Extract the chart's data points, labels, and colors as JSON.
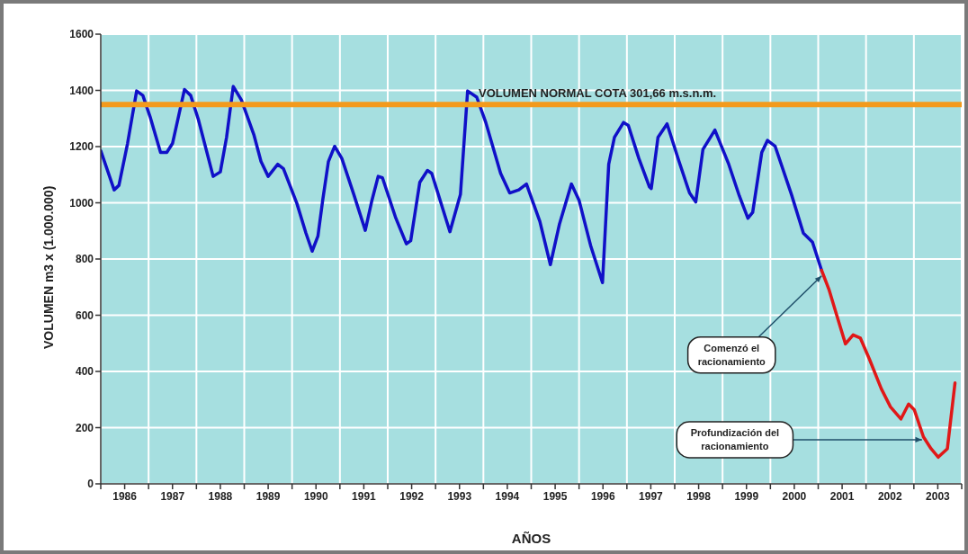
{
  "chart_data": {
    "type": "line",
    "xlabel": "AÑOS",
    "ylabel": "VOLUMEN m3 x (1.000.000)",
    "xlim": [
      1986,
      2004
    ],
    "ylim": [
      0,
      1600
    ],
    "yticks": [
      0,
      200,
      400,
      600,
      800,
      1000,
      1200,
      1400,
      1600
    ],
    "xticks": [
      {
        "value": 1986,
        "label": null
      },
      {
        "value": 1986.5,
        "label": "1986"
      },
      {
        "value": 1987,
        "label": null
      },
      {
        "value": 1987.5,
        "label": "1987"
      },
      {
        "value": 1988,
        "label": null
      },
      {
        "value": 1988.5,
        "label": "1988"
      },
      {
        "value": 1989,
        "label": null
      },
      {
        "value": 1989.5,
        "label": "1989"
      },
      {
        "value": 1990,
        "label": null
      },
      {
        "value": 1990.5,
        "label": "1990"
      },
      {
        "value": 1991,
        "label": null
      },
      {
        "value": 1991.5,
        "label": "1991"
      },
      {
        "value": 1992,
        "label": null
      },
      {
        "value": 1992.5,
        "label": "1992"
      },
      {
        "value": 1993,
        "label": null
      },
      {
        "value": 1993.5,
        "label": "1993"
      },
      {
        "value": 1994,
        "label": null
      },
      {
        "value": 1994.5,
        "label": "1994"
      },
      {
        "value": 1995,
        "label": null
      },
      {
        "value": 1995.5,
        "label": "1995"
      },
      {
        "value": 1996,
        "label": null
      },
      {
        "value": 1996.5,
        "label": "1996"
      },
      {
        "value": 1997,
        "label": null
      },
      {
        "value": 1997.5,
        "label": "1997"
      },
      {
        "value": 1998,
        "label": null
      },
      {
        "value": 1998.5,
        "label": "1998"
      },
      {
        "value": 1999,
        "label": null
      },
      {
        "value": 1999.5,
        "label": "1999"
      },
      {
        "value": 2000,
        "label": null
      },
      {
        "value": 2000.5,
        "label": "2000"
      },
      {
        "value": 2001,
        "label": null
      },
      {
        "value": 2001.5,
        "label": "2001"
      },
      {
        "value": 2002,
        "label": null
      },
      {
        "value": 2002.5,
        "label": "2002"
      },
      {
        "value": 2003,
        "label": null
      },
      {
        "value": 2003.5,
        "label": "2003"
      },
      {
        "value": 2004,
        "label": null
      }
    ],
    "grid": true,
    "marker": "none",
    "line_style": "solid",
    "series": [
      {
        "color": "#1010c8",
        "x": [
          1986.0,
          1986.28,
          1986.38,
          1986.56,
          1986.75,
          1986.88,
          1987.03,
          1987.25,
          1987.38,
          1987.5,
          1987.75,
          1987.88,
          1988.04,
          1988.35,
          1988.5,
          1988.63,
          1988.77,
          1988.94,
          1989.2,
          1989.35,
          1989.5,
          1989.7,
          1989.82,
          1990.1,
          1990.29,
          1990.42,
          1990.54,
          1990.64,
          1990.76,
          1990.89,
          1991.04,
          1991.29,
          1991.53,
          1991.67,
          1991.8,
          1991.89,
          1992.17,
          1992.39,
          1992.48,
          1992.67,
          1992.83,
          1992.92,
          1993.3,
          1993.52,
          1993.67,
          1993.86,
          1994.05,
          1994.36,
          1994.55,
          1994.74,
          1994.9,
          1995.18,
          1995.4,
          1995.59,
          1995.84,
          1996.0,
          1996.24,
          1996.49,
          1996.62,
          1996.74,
          1996.93,
          1997.03,
          1997.25,
          1997.47,
          1997.51,
          1997.65,
          1997.84,
          1998.09,
          1998.31,
          1998.44,
          1998.59,
          1998.84,
          1999.13,
          1999.35,
          1999.53,
          1999.63,
          1999.82,
          1999.94,
          2000.1,
          2000.44,
          2000.69,
          2000.88,
          2001.07
        ],
        "values": [
          1185,
          1046,
          1062,
          1211,
          1398,
          1382,
          1307,
          1179,
          1179,
          1211,
          1403,
          1382,
          1297,
          1094,
          1110,
          1233,
          1414,
          1366,
          1243,
          1147,
          1094,
          1137,
          1121,
          998,
          892,
          828,
          881,
          1009,
          1147,
          1201,
          1158,
          1030,
          902,
          1009,
          1094,
          1089,
          945,
          854,
          865,
          1073,
          1115,
          1105,
          897,
          1030,
          1398,
          1376,
          1286,
          1105,
          1035,
          1046,
          1067,
          934,
          780,
          924,
          1067,
          1009,
          849,
          716,
          1137,
          1233,
          1286,
          1275,
          1158,
          1057,
          1051,
          1233,
          1281,
          1147,
          1035,
          1003,
          1190,
          1259,
          1137,
          1025,
          945,
          966,
          1179,
          1222,
          1201,
          1030,
          892,
          860,
          760
        ]
      },
      {
        "color": "#e01818",
        "x": [
          2001.07,
          2001.23,
          2001.38,
          2001.57,
          2001.73,
          2001.88,
          2002.07,
          2002.32,
          2002.51,
          2002.73,
          2002.89,
          2003.01,
          2003.2,
          2003.36,
          2003.51,
          2003.7,
          2003.86
        ],
        "values": [
          760,
          689,
          604,
          498,
          530,
          519,
          444,
          338,
          274,
          231,
          284,
          263,
          167,
          125,
          95,
          125,
          359
        ]
      }
    ],
    "ref_lines": [
      {
        "axis": "y",
        "value": 1350,
        "label": "VOLUMEN NORMAL COTA 301,66 m.s.n.m.",
        "color": "#f39a1c"
      }
    ],
    "annotations": [
      {
        "text": "Comenzó el racionamiento",
        "x": 2001.07,
        "y": 740
      },
      {
        "text": "Profundización del racionamiento",
        "x": 2003.17,
        "y": 157
      }
    ]
  }
}
